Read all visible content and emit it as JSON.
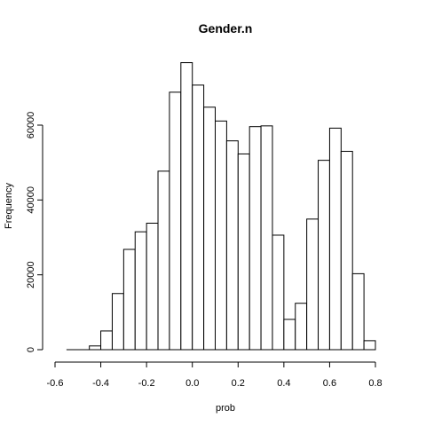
{
  "chart_data": {
    "type": "bar",
    "title": "Gender.n",
    "xlabel": "prob",
    "ylabel": "Frequency",
    "bin_width": 0.05,
    "bins": [
      {
        "start": -0.55,
        "end": -0.5,
        "count": 0
      },
      {
        "start": -0.5,
        "end": -0.45,
        "count": 0
      },
      {
        "start": -0.45,
        "end": -0.4,
        "count": 1000
      },
      {
        "start": -0.4,
        "end": -0.35,
        "count": 5000
      },
      {
        "start": -0.35,
        "end": -0.3,
        "count": 15000
      },
      {
        "start": -0.3,
        "end": -0.25,
        "count": 26800
      },
      {
        "start": -0.25,
        "end": -0.2,
        "count": 31500
      },
      {
        "start": -0.2,
        "end": -0.15,
        "count": 33800
      },
      {
        "start": -0.15,
        "end": -0.1,
        "count": 47700
      },
      {
        "start": -0.1,
        "end": -0.05,
        "count": 68800
      },
      {
        "start": -0.05,
        "end": 0.0,
        "count": 76700
      },
      {
        "start": 0.0,
        "end": 0.05,
        "count": 70700
      },
      {
        "start": 0.05,
        "end": 0.1,
        "count": 64800
      },
      {
        "start": 0.1,
        "end": 0.15,
        "count": 61100
      },
      {
        "start": 0.15,
        "end": 0.2,
        "count": 55800
      },
      {
        "start": 0.2,
        "end": 0.25,
        "count": 52300
      },
      {
        "start": 0.25,
        "end": 0.3,
        "count": 59600
      },
      {
        "start": 0.3,
        "end": 0.35,
        "count": 59800
      },
      {
        "start": 0.35,
        "end": 0.4,
        "count": 30600
      },
      {
        "start": 0.4,
        "end": 0.45,
        "count": 8100
      },
      {
        "start": 0.45,
        "end": 0.5,
        "count": 12400
      },
      {
        "start": 0.5,
        "end": 0.55,
        "count": 34900
      },
      {
        "start": 0.55,
        "end": 0.6,
        "count": 50600
      },
      {
        "start": 0.6,
        "end": 0.65,
        "count": 59200
      },
      {
        "start": 0.65,
        "end": 0.7,
        "count": 53000
      },
      {
        "start": 0.7,
        "end": 0.75,
        "count": 20300
      },
      {
        "start": 0.75,
        "end": 0.8,
        "count": 2400
      }
    ],
    "xlim": [
      -0.6,
      0.8
    ],
    "ylim": [
      0,
      80000
    ],
    "x_ticks": [
      -0.6,
      -0.4,
      -0.2,
      0.0,
      0.2,
      0.4,
      0.6,
      0.8
    ],
    "x_tick_labels": [
      "-0.6",
      "-0.4",
      "-0.2",
      "0.0",
      "0.2",
      "0.4",
      "0.6",
      "0.8"
    ],
    "y_ticks": [
      0,
      20000,
      40000,
      60000
    ],
    "y_tick_labels": [
      "0",
      "20000",
      "40000",
      "60000"
    ],
    "grid": false,
    "colors": {
      "bar_fill": "#ffffff",
      "bar_stroke": "#000000"
    }
  }
}
